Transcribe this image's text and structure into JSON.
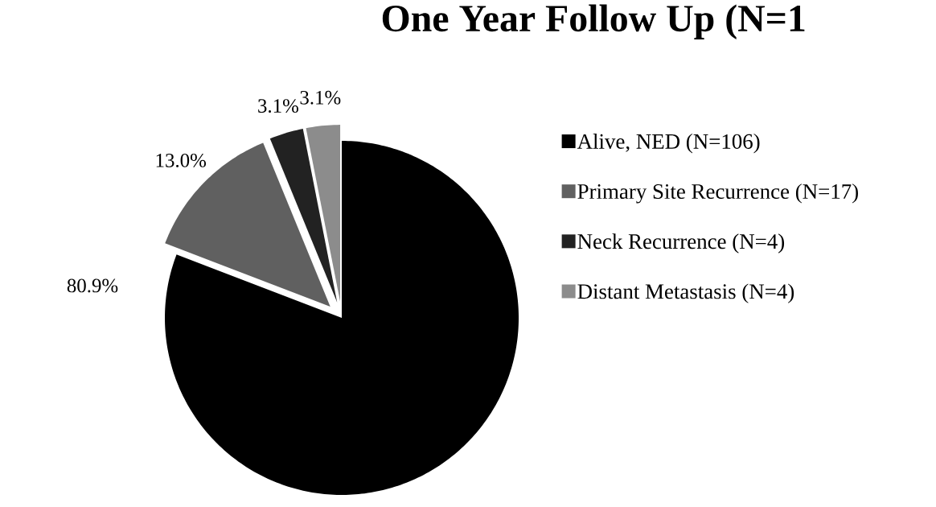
{
  "chart_data": {
    "type": "pie",
    "title": "One Year Follow Up (N=1",
    "categories": [
      "Alive, NED (N=106)",
      "Primary Site Recurrence (N=17)",
      "Neck Recurrence (N=4)",
      "Distant Metastasis (N=4)"
    ],
    "values": [
      80.9,
      13.0,
      3.1,
      3.1
    ],
    "value_labels": [
      "80.9%",
      "13.0%",
      "3.1%",
      "3.1%"
    ],
    "colors": [
      "#000000",
      "#606060",
      "#222222",
      "#8c8c8c"
    ],
    "legend": "right"
  }
}
